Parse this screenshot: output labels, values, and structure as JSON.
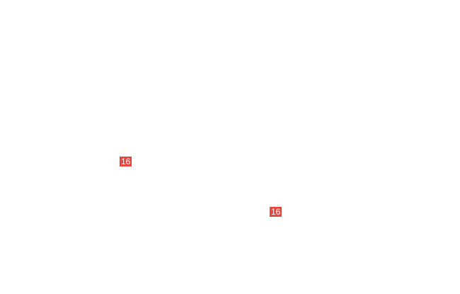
{
  "badges": [
    {
      "label": "16"
    },
    {
      "label": "16"
    }
  ],
  "colors": {
    "badge_bg": "#e8453c",
    "background": "#ffffff"
  }
}
